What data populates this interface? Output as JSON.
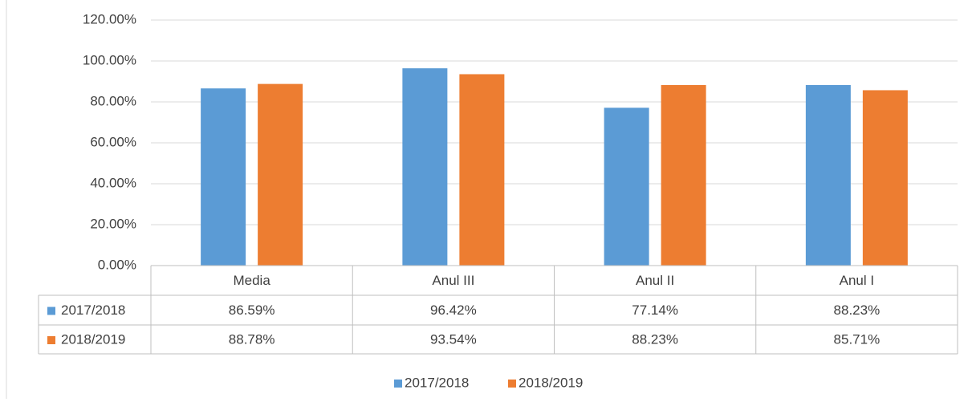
{
  "chart_data": {
    "type": "bar",
    "categories": [
      "Media",
      "Anul III",
      "Anul II",
      "Anul I"
    ],
    "series": [
      {
        "name": "2017/2018",
        "color": "#5b9bd5",
        "values": [
          86.59,
          96.42,
          77.14,
          88.23
        ],
        "value_labels": [
          "86.59%",
          "96.42%",
          "77.14%",
          "88.23%"
        ]
      },
      {
        "name": "2018/2019",
        "color": "#ed7d31",
        "values": [
          88.78,
          93.54,
          88.23,
          85.71
        ],
        "value_labels": [
          "88.78%",
          "93.54%",
          "88.23%",
          "85.71%"
        ]
      }
    ],
    "ylim": [
      0,
      120
    ],
    "yticks": [
      {
        "value": 0,
        "label": "0.00%"
      },
      {
        "value": 20,
        "label": "20.00%"
      },
      {
        "value": 40,
        "label": "40.00%"
      },
      {
        "value": 60,
        "label": "60.00%"
      },
      {
        "value": 80,
        "label": "80.00%"
      },
      {
        "value": 100,
        "label": "100.00%"
      },
      {
        "value": 120,
        "label": "120.00%"
      }
    ],
    "grid": true,
    "legend": "bottom"
  }
}
